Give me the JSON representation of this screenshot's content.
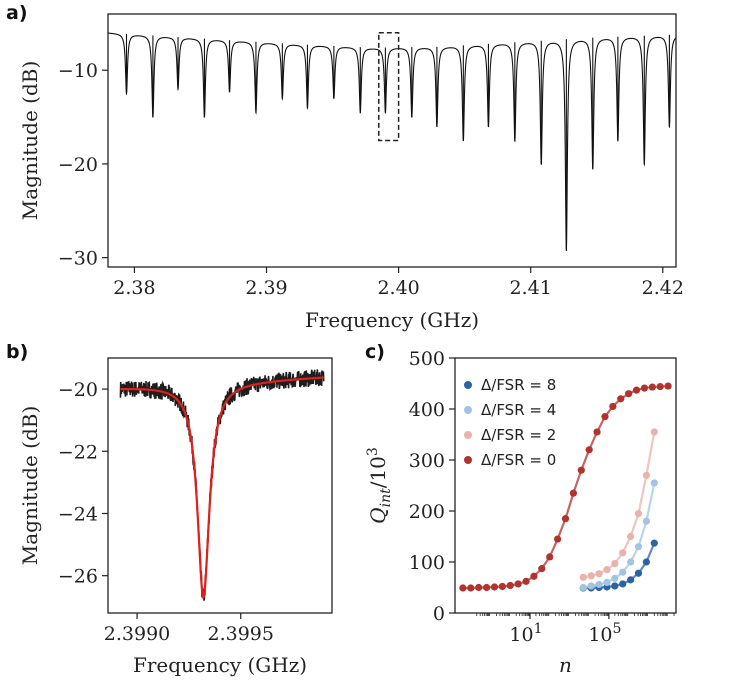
{
  "chart_data": [
    {
      "panel": "a)",
      "type": "line",
      "xlabel": "Frequency (GHz)",
      "ylabel": "Magnitude (dB)",
      "xlim": [
        2.378,
        2.421
      ],
      "ylim": [
        -31,
        -4
      ],
      "xticks": [
        "2.38",
        "2.39",
        "2.40",
        "2.41",
        "2.42"
      ],
      "xtick_values": [
        2.38,
        2.39,
        2.4,
        2.41,
        2.42
      ],
      "yticks": [
        "−10",
        "−20",
        "−30"
      ],
      "ytick_values": [
        -10,
        -20,
        -30
      ],
      "baseline": {
        "x": [
          2.378,
          2.385,
          2.392,
          2.398,
          2.403,
          2.409,
          2.415,
          2.421
        ],
        "y": [
          -6.0,
          -6.6,
          -7.2,
          -7.6,
          -7.5,
          -7.0,
          -6.5,
          -6.2
        ]
      },
      "resonances": {
        "x": [
          2.3794,
          2.3814,
          2.3833,
          2.3853,
          2.3872,
          2.3892,
          2.3912,
          2.3931,
          2.3951,
          2.3971,
          2.399,
          2.401,
          2.4029,
          2.4049,
          2.4068,
          2.4088,
          2.4108,
          2.4127,
          2.4147,
          2.4166,
          2.4186,
          2.4205
        ],
        "y": [
          -12.5,
          -15.0,
          -12.0,
          -15.0,
          -12.3,
          -14.5,
          -13.0,
          -14.0,
          -13.0,
          -14.5,
          -14.5,
          -15.0,
          -16.0,
          -17.5,
          -16.0,
          -17.5,
          -20.0,
          -29.2,
          -20.5,
          -17.5,
          -20.0,
          -16.0
        ]
      },
      "highlight_box": {
        "x": [
          2.3985,
          2.4
        ],
        "y": [
          -17.5,
          -6.0
        ]
      }
    },
    {
      "panel": "b)",
      "type": "line",
      "xlabel": "Frequency (GHz)",
      "ylabel": "Magnitude (dB)",
      "xlim": [
        2.39886,
        2.39994
      ],
      "ylim": [
        -27.2,
        -19.0
      ],
      "xticks": [
        "2.3990",
        "2.3995"
      ],
      "xtick_values": [
        2.399,
        2.3995
      ],
      "yticks": [
        "−20",
        "−22",
        "−24",
        "−26"
      ],
      "ytick_values": [
        -20,
        -22,
        -24,
        -26
      ],
      "series": [
        {
          "kind": "measured",
          "color": "#1e1e1e"
        },
        {
          "kind": "fit",
          "color": "#e0201c"
        }
      ],
      "resonance": {
        "center": 2.39932,
        "baseline_left": -19.95,
        "baseline_right": -19.6,
        "depth_min": -26.7,
        "x_range": [
          2.39892,
          2.3999
        ]
      }
    },
    {
      "panel": "c)",
      "type": "scatter",
      "xlabel": "n",
      "ylabel": "Q_int/10^3",
      "xscale": "log",
      "xlim_log10": [
        -2.8,
        8.4
      ],
      "ylim": [
        0,
        500
      ],
      "xticks": [
        "10^1",
        "10^5"
      ],
      "xtick_values_log10": [
        1,
        5
      ],
      "yticks": [
        "0",
        "100",
        "200",
        "300",
        "400",
        "500"
      ],
      "ytick_values": [
        0,
        100,
        200,
        300,
        400,
        500
      ],
      "legend_position": "upper-left",
      "series": [
        {
          "name": "Δ/FSR = 8",
          "color": "#2b64a6",
          "log10_x": [
            3.7,
            4.1,
            4.5,
            4.9,
            5.3,
            5.7,
            6.1,
            6.5,
            6.9,
            7.3
          ],
          "y": [
            49,
            49,
            50,
            51,
            53,
            57,
            65,
            78,
            100,
            137
          ]
        },
        {
          "name": "Δ/FSR = 4",
          "color": "#a3c4e1",
          "log10_x": [
            3.7,
            4.1,
            4.5,
            4.9,
            5.3,
            5.7,
            6.1,
            6.5,
            6.9,
            7.3
          ],
          "y": [
            50,
            53,
            56,
            60,
            68,
            80,
            100,
            130,
            180,
            255
          ]
        },
        {
          "name": "Δ/FSR = 2",
          "color": "#e9b2ab",
          "log10_x": [
            3.7,
            4.1,
            4.5,
            4.9,
            5.3,
            5.7,
            6.1,
            6.5,
            6.9,
            7.3
          ],
          "y": [
            70,
            73,
            77,
            85,
            97,
            118,
            150,
            195,
            270,
            355
          ]
        },
        {
          "name": "Δ/FSR = 0",
          "color": "#b2322c",
          "log10_x": [
            -2.4,
            -2.0,
            -1.6,
            -1.2,
            -0.8,
            -0.4,
            0.0,
            0.4,
            0.8,
            1.2,
            1.6,
            2.0,
            2.4,
            2.8,
            3.2,
            3.6,
            4.0,
            4.4,
            4.8,
            5.2,
            5.6,
            6.0,
            6.4,
            6.8,
            7.2,
            7.6,
            8.0
          ],
          "y": [
            49,
            49,
            50,
            50,
            51,
            52,
            54,
            57,
            62,
            72,
            87,
            110,
            145,
            185,
            235,
            280,
            320,
            355,
            385,
            405,
            420,
            430,
            437,
            441,
            443,
            444,
            445
          ]
        }
      ]
    }
  ],
  "colors": {
    "axis": "#222222",
    "trace_a": "#111111",
    "fit_b": "#e0201c",
    "measured_b": "#1e1e1e"
  }
}
